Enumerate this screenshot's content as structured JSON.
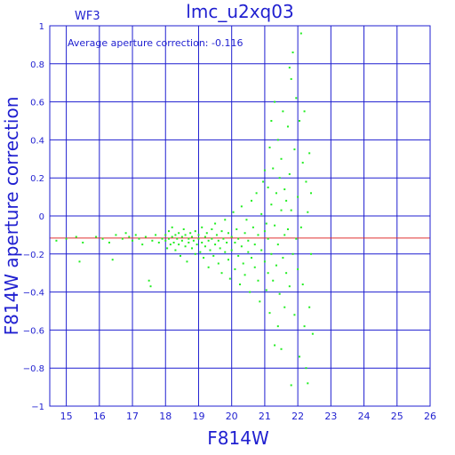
{
  "chart_data": {
    "type": "scatter",
    "title": "lmc_u2xq03",
    "subtitle": "WF3",
    "annotation": "Average aperture correction: -0.116",
    "xlabel": "F814W",
    "ylabel": "F814W aperture correction",
    "xlim": [
      14.5,
      26
    ],
    "ylim": [
      -1,
      1
    ],
    "x_ticks": [
      15,
      16,
      17,
      18,
      19,
      20,
      21,
      22,
      23,
      24,
      25,
      26
    ],
    "y_ticks": [
      -1,
      -0.8,
      -0.6,
      -0.4,
      -0.2,
      0,
      0.2,
      0.4,
      0.6,
      0.8,
      1
    ],
    "x_tick_labels": [
      "15",
      "16",
      "17",
      "18",
      "19",
      "20",
      "21",
      "22",
      "23",
      "24",
      "25",
      "26"
    ],
    "y_tick_labels": [
      "−1",
      "−0.8",
      "−0.6",
      "−0.4",
      "−0.2",
      "0",
      "0.2",
      "0.4",
      "0.6",
      "0.8",
      "1"
    ],
    "grid": true,
    "reference_line": {
      "y": -0.116,
      "color": "#e03030"
    },
    "point_color": "#22ee22",
    "axis_color": "#1f1fd0",
    "series": [
      {
        "points": [
          [
            14.7,
            -0.13
          ],
          [
            15.0,
            -0.12
          ],
          [
            15.3,
            -0.11
          ],
          [
            15.5,
            -0.14
          ],
          [
            15.4,
            -0.24
          ],
          [
            15.9,
            -0.11
          ],
          [
            16.1,
            -0.12
          ],
          [
            16.3,
            -0.14
          ],
          [
            16.4,
            -0.23
          ],
          [
            16.5,
            -0.1
          ],
          [
            16.7,
            -0.12
          ],
          [
            16.8,
            -0.09
          ],
          [
            16.9,
            -0.11
          ],
          [
            17.0,
            -0.13
          ],
          [
            17.1,
            -0.1
          ],
          [
            17.2,
            -0.12
          ],
          [
            17.3,
            -0.15
          ],
          [
            17.4,
            -0.11
          ],
          [
            17.5,
            -0.34
          ],
          [
            17.55,
            -0.37
          ],
          [
            17.6,
            -0.13
          ],
          [
            17.7,
            -0.1
          ],
          [
            17.8,
            -0.14
          ],
          [
            17.9,
            -0.12
          ],
          [
            18.0,
            -0.1
          ],
          [
            18.0,
            -0.13
          ],
          [
            18.05,
            -0.17
          ],
          [
            18.1,
            -0.08
          ],
          [
            18.1,
            -0.12
          ],
          [
            18.15,
            -0.15
          ],
          [
            18.2,
            -0.11
          ],
          [
            18.2,
            -0.06
          ],
          [
            18.25,
            -0.14
          ],
          [
            18.3,
            -0.1
          ],
          [
            18.3,
            -0.18
          ],
          [
            18.35,
            -0.12
          ],
          [
            18.4,
            -0.09
          ],
          [
            18.4,
            -0.15
          ],
          [
            18.45,
            -0.21
          ],
          [
            18.5,
            -0.11
          ],
          [
            18.5,
            -0.13
          ],
          [
            18.55,
            -0.07
          ],
          [
            18.6,
            -0.16
          ],
          [
            18.6,
            -0.1
          ],
          [
            18.65,
            -0.24
          ],
          [
            18.7,
            -0.12
          ],
          [
            18.7,
            -0.14
          ],
          [
            18.75,
            -0.09
          ],
          [
            18.8,
            -0.17
          ],
          [
            18.8,
            -0.11
          ],
          [
            18.85,
            -0.13
          ],
          [
            18.9,
            -0.2
          ],
          [
            18.9,
            -0.08
          ],
          [
            18.95,
            -0.15
          ],
          [
            19.0,
            -0.12
          ],
          [
            19.0,
            -0.1
          ],
          [
            19.05,
            -0.19
          ],
          [
            19.1,
            -0.14
          ],
          [
            19.1,
            -0.06
          ],
          [
            19.15,
            -0.22
          ],
          [
            19.2,
            -0.11
          ],
          [
            19.2,
            -0.16
          ],
          [
            19.25,
            -0.09
          ],
          [
            19.3,
            -0.13
          ],
          [
            19.3,
            -0.27
          ],
          [
            19.35,
            -0.18
          ],
          [
            19.4,
            -0.07
          ],
          [
            19.4,
            -0.12
          ],
          [
            19.45,
            -0.21
          ],
          [
            19.5,
            -0.15
          ],
          [
            19.5,
            -0.04
          ],
          [
            19.55,
            -0.1
          ],
          [
            19.6,
            -0.25
          ],
          [
            19.6,
            -0.13
          ],
          [
            19.65,
            -0.17
          ],
          [
            19.7,
            -0.08
          ],
          [
            19.7,
            -0.3
          ],
          [
            19.75,
            -0.12
          ],
          [
            19.8,
            -0.02
          ],
          [
            19.8,
            -0.19
          ],
          [
            19.85,
            -0.14
          ],
          [
            19.9,
            -0.23
          ],
          [
            19.9,
            -0.09
          ],
          [
            19.95,
            -0.33
          ],
          [
            20.0,
            -0.11
          ],
          [
            20.0,
            -0.18
          ],
          [
            20.05,
            0.02
          ],
          [
            20.1,
            -0.14
          ],
          [
            20.1,
            -0.28
          ],
          [
            20.15,
            -0.07
          ],
          [
            20.2,
            -0.21
          ],
          [
            20.2,
            -0.12
          ],
          [
            20.25,
            -0.36
          ],
          [
            20.3,
            0.05
          ],
          [
            20.3,
            -0.16
          ],
          [
            20.35,
            -0.25
          ],
          [
            20.4,
            -0.09
          ],
          [
            20.4,
            -0.31
          ],
          [
            20.45,
            -0.02
          ],
          [
            20.5,
            -0.19
          ],
          [
            20.5,
            -0.13
          ],
          [
            20.55,
            -0.4
          ],
          [
            20.6,
            0.08
          ],
          [
            20.6,
            -0.22
          ],
          [
            20.65,
            -0.06
          ],
          [
            20.7,
            -0.27
          ],
          [
            20.7,
            -0.15
          ],
          [
            20.75,
            0.12
          ],
          [
            20.8,
            -0.34
          ],
          [
            20.8,
            -0.1
          ],
          [
            20.85,
            -0.45
          ],
          [
            20.9,
            0.01
          ],
          [
            20.9,
            -0.18
          ],
          [
            20.95,
            0.18
          ],
          [
            21.0,
            -0.24
          ],
          [
            21.0,
            -0.08
          ],
          [
            21.0,
            0.24
          ],
          [
            21.05,
            -0.39
          ],
          [
            21.05,
            -0.04
          ],
          [
            21.1,
            0.15
          ],
          [
            21.1,
            -0.3
          ],
          [
            21.1,
            -0.12
          ],
          [
            21.15,
            0.36
          ],
          [
            21.15,
            -0.51
          ],
          [
            21.2,
            0.06
          ],
          [
            21.2,
            -0.2
          ],
          [
            21.2,
            0.5
          ],
          [
            21.25,
            -0.34
          ],
          [
            21.25,
            0.25
          ],
          [
            21.3,
            -0.05
          ],
          [
            21.3,
            0.6
          ],
          [
            21.3,
            -0.68
          ],
          [
            21.35,
            -0.26
          ],
          [
            21.35,
            0.12
          ],
          [
            21.4,
            0.4
          ],
          [
            21.4,
            -0.15
          ],
          [
            21.4,
            -0.58
          ],
          [
            21.45,
            0.2
          ],
          [
            21.45,
            -0.41
          ],
          [
            21.5,
            0.03
          ],
          [
            21.5,
            -0.7
          ],
          [
            21.5,
            0.3
          ],
          [
            21.55,
            -0.22
          ],
          [
            21.55,
            0.55
          ],
          [
            21.6,
            -0.1
          ],
          [
            21.6,
            0.14
          ],
          [
            21.6,
            -0.48
          ],
          [
            21.65,
            0.08
          ],
          [
            21.65,
            -0.3
          ],
          [
            21.7,
            0.47
          ],
          [
            21.7,
            -0.07
          ],
          [
            21.75,
            0.78
          ],
          [
            21.75,
            -0.37
          ],
          [
            21.75,
            0.22
          ],
          [
            21.8,
            -0.89
          ],
          [
            21.8,
            0.03
          ],
          [
            21.8,
            0.72
          ],
          [
            21.85,
            -0.2
          ],
          [
            21.85,
            0.86
          ],
          [
            21.9,
            -0.52
          ],
          [
            21.9,
            0.35
          ],
          [
            21.95,
            -0.12
          ],
          [
            21.95,
            0.62
          ],
          [
            22.0,
            -0.28
          ],
          [
            22.0,
            0.1
          ],
          [
            22.05,
            -0.74
          ],
          [
            22.05,
            0.5
          ],
          [
            22.1,
            0.96
          ],
          [
            22.1,
            -0.06
          ],
          [
            22.15,
            -0.36
          ],
          [
            22.15,
            0.28
          ],
          [
            22.2,
            -0.58
          ],
          [
            22.2,
            0.55
          ],
          [
            22.25,
            -0.8
          ],
          [
            22.25,
            0.18
          ],
          [
            22.3,
            -0.88
          ],
          [
            22.3,
            0.02
          ],
          [
            22.35,
            -0.48
          ],
          [
            22.35,
            0.33
          ],
          [
            22.4,
            -0.2
          ],
          [
            22.4,
            0.12
          ],
          [
            22.45,
            -0.62
          ]
        ]
      }
    ]
  }
}
